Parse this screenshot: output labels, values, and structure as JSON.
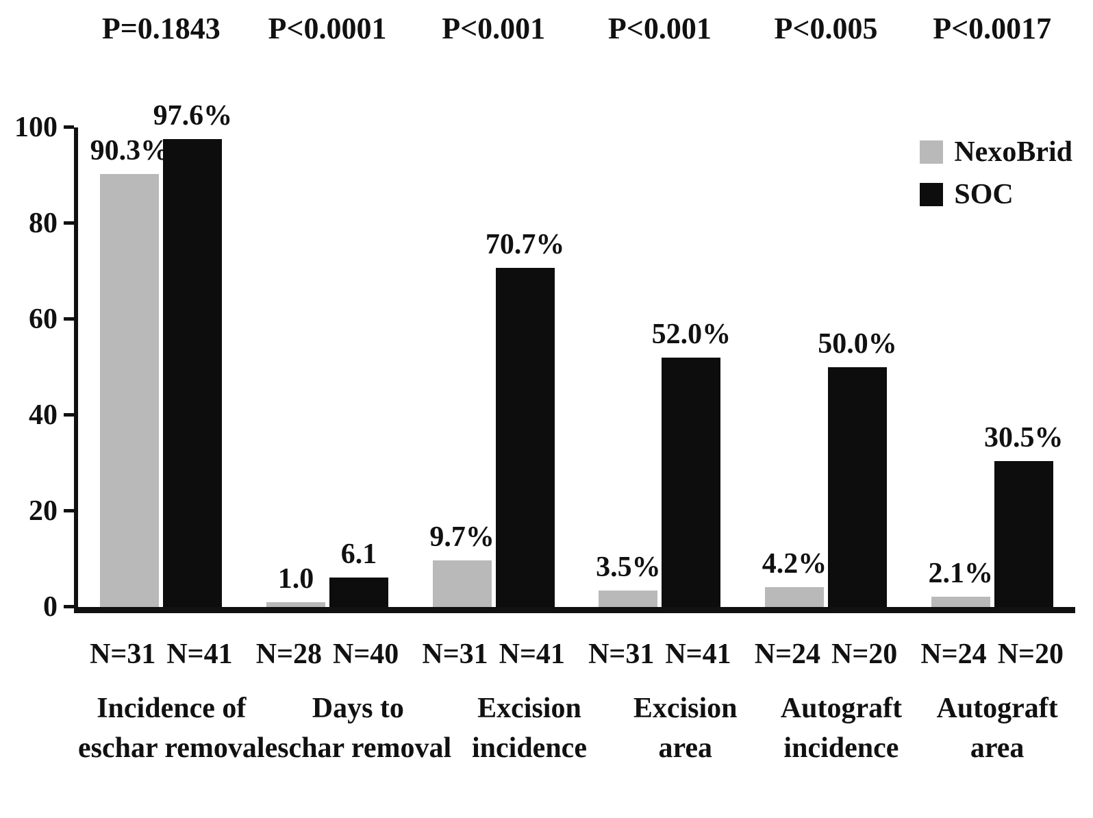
{
  "figure": {
    "background": "#ffffff",
    "text_color": "#111111",
    "axis_color": "#111111"
  },
  "chart_data": {
    "type": "bar",
    "title": "",
    "xlabel": "",
    "ylabel": "",
    "ylim": [
      0,
      100
    ],
    "yticks": [
      0,
      20,
      40,
      60,
      80,
      100
    ],
    "grid": false,
    "categories": [
      "Incidence of eschar removal",
      "Days to eschar removal",
      "Excision incidence",
      "Excision area",
      "Autograft incidence",
      "Autograft area"
    ],
    "category_lines": [
      [
        "Incidence of",
        "eschar removal"
      ],
      [
        "Days to",
        "eschar removal"
      ],
      [
        "Excision",
        "incidence"
      ],
      [
        "Excision",
        "area"
      ],
      [
        "Autograft",
        "incidence"
      ],
      [
        "Autograft",
        "area"
      ]
    ],
    "p_values": [
      "P=0.1843",
      "P<0.0001",
      "P<0.001",
      "P<0.001",
      "P<0.005",
      "P<0.0017"
    ],
    "n_labels": [
      [
        "N=31",
        "N=41"
      ],
      [
        "N=28",
        "N=40"
      ],
      [
        "N=31",
        "N=41"
      ],
      [
        "N=31",
        "N=41"
      ],
      [
        "N=24",
        "N=20"
      ],
      [
        "N=24",
        "N=20"
      ]
    ],
    "series": [
      {
        "name": "NexoBrid",
        "color": "#b9b9b9",
        "values": [
          90.3,
          1.0,
          9.7,
          3.5,
          4.2,
          2.1
        ],
        "value_labels": [
          "90.3%",
          "1.0",
          "9.7%",
          "3.5%",
          "4.2%",
          "2.1%"
        ]
      },
      {
        "name": "SOC",
        "color": "#0d0d0d",
        "values": [
          97.6,
          6.1,
          70.7,
          52.0,
          50.0,
          30.5
        ],
        "value_labels": [
          "97.6%",
          "6.1",
          "70.7%",
          "52.0%",
          "50.0%",
          "30.5%"
        ]
      }
    ],
    "legend": {
      "position": "top-right",
      "entries": [
        {
          "label": "NexoBrid",
          "color": "#b9b9b9"
        },
        {
          "label": "SOC",
          "color": "#0d0d0d"
        }
      ]
    }
  }
}
